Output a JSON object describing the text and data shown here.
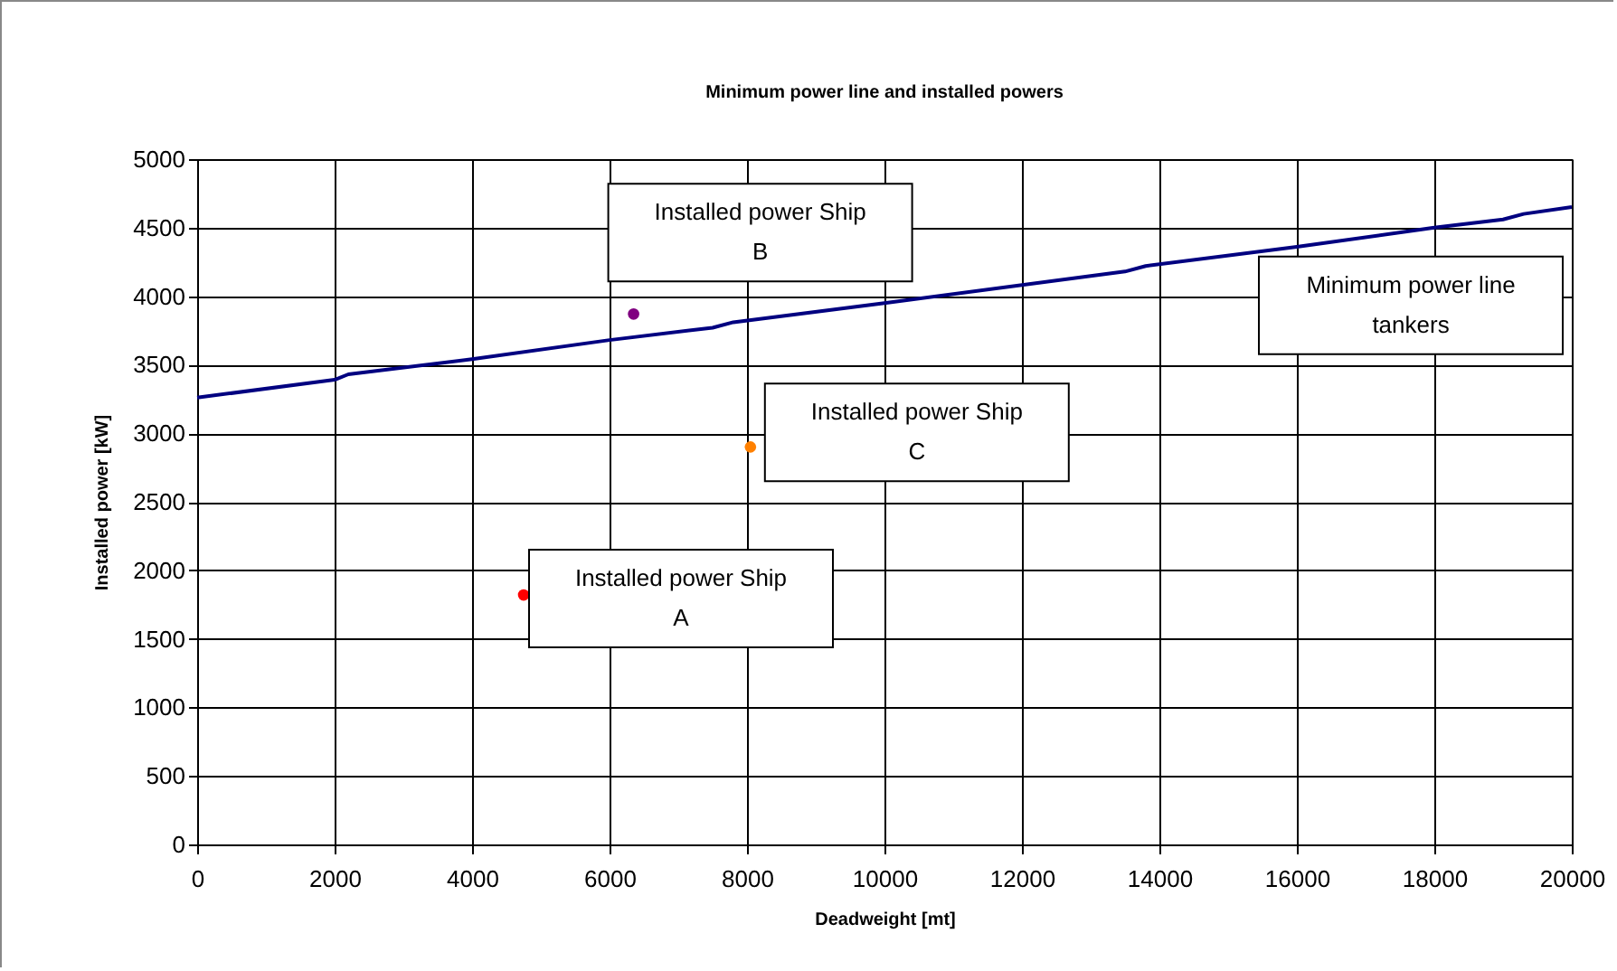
{
  "chart_data": {
    "type": "scatter",
    "title": "Minimum power line and installed powers",
    "xlabel": "Deadweight [mt]",
    "ylabel": "Installed power [kW]",
    "xlim": [
      0,
      20000
    ],
    "xticks": [
      0,
      2000,
      4000,
      6000,
      8000,
      10000,
      12000,
      14000,
      16000,
      18000,
      20000
    ],
    "ylim": [
      0,
      5000
    ],
    "yticks": [
      0,
      500,
      1000,
      1500,
      2000,
      2500,
      3000,
      3500,
      4000,
      4500,
      5000
    ],
    "grid": true,
    "marker": "circle",
    "series": [
      {
        "type": "line",
        "marker": "none",
        "color": "#000080",
        "x": [
          0,
          2000,
          2200,
          4000,
          6000,
          7500,
          7800,
          10000,
          13500,
          13800,
          16000,
          18000,
          19000,
          19300,
          20000
        ],
        "values": [
          3260,
          3390,
          3430,
          3540,
          3680,
          3770,
          3810,
          3950,
          4180,
          4220,
          4360,
          4500,
          4560,
          4600,
          4650
        ]
      },
      {
        "color": "#ff0000",
        "x": [
          4750
        ],
        "values": [
          1820
        ]
      },
      {
        "color": "#800080",
        "x": [
          6350
        ],
        "values": [
          3870
        ]
      },
      {
        "color": "#ff8000",
        "x": [
          8050
        ],
        "values": [
          2900
        ]
      }
    ],
    "annotations": [
      {
        "text": "Installed power Ship A",
        "x": 4750,
        "y": 1820
      },
      {
        "text": "Installed power Ship B",
        "x": 6350,
        "y": 3870
      },
      {
        "text": "Installed power Ship C",
        "x": 8050,
        "y": 2900
      },
      {
        "text": "Minimum power line tankers",
        "x": 18000,
        "y": 4500
      }
    ]
  }
}
